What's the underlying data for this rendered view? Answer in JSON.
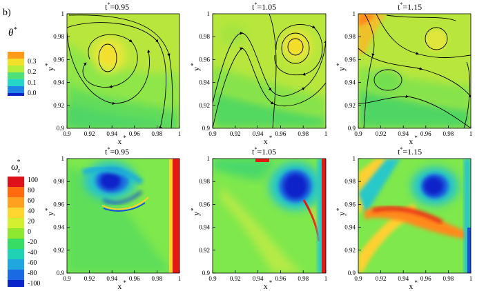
{
  "figure": {
    "panel_label": "b)",
    "top_row": {
      "legend": {
        "symbol": "θ",
        "superscript": "*",
        "ticks": [
          "0.3",
          "0.2",
          "0.1",
          "0.0"
        ],
        "colors": [
          "#ff9a1a",
          "#f2e02a",
          "#b4ee3a",
          "#4fe07a",
          "#25d6c8",
          "#1f86e8",
          "#0b23c8"
        ]
      },
      "panels": [
        {
          "time_label": "t",
          "time_sup": "*",
          "time_value": "=0.95"
        },
        {
          "time_label": "t",
          "time_sup": "*",
          "time_value": "=1.05"
        },
        {
          "time_label": "t",
          "time_sup": "*",
          "time_value": "=1.15"
        }
      ]
    },
    "bottom_row": {
      "legend": {
        "symbol": "ω",
        "subscript": "z",
        "superscript": "*",
        "ticks": [
          "100",
          "80",
          "60",
          "40",
          "20",
          "0",
          "-20",
          "-40",
          "-60",
          "-80",
          "-100"
        ],
        "colors": [
          "#e0101a",
          "#ff6a10",
          "#ffa020",
          "#ffd630",
          "#d4ee30",
          "#8ee830",
          "#36dc64",
          "#20d2b4",
          "#21a6e0",
          "#1a6ae4",
          "#0a24cc"
        ]
      },
      "panels": [
        {
          "time_label": "t",
          "time_sup": "*",
          "time_value": "=0.95"
        },
        {
          "time_label": "t",
          "time_sup": "*",
          "time_value": "=1.05"
        },
        {
          "time_label": "t",
          "time_sup": "*",
          "time_value": "=1.15"
        }
      ]
    },
    "axes": {
      "x_label": "x",
      "y_label": "y",
      "label_sup": "*",
      "x_ticks": [
        "0.9",
        "0.92",
        "0.94",
        "0.96",
        "0.98",
        "1"
      ],
      "y_ticks": [
        "1",
        "0.98",
        "0.96",
        "0.94",
        "0.92",
        "0.9"
      ]
    }
  }
}
